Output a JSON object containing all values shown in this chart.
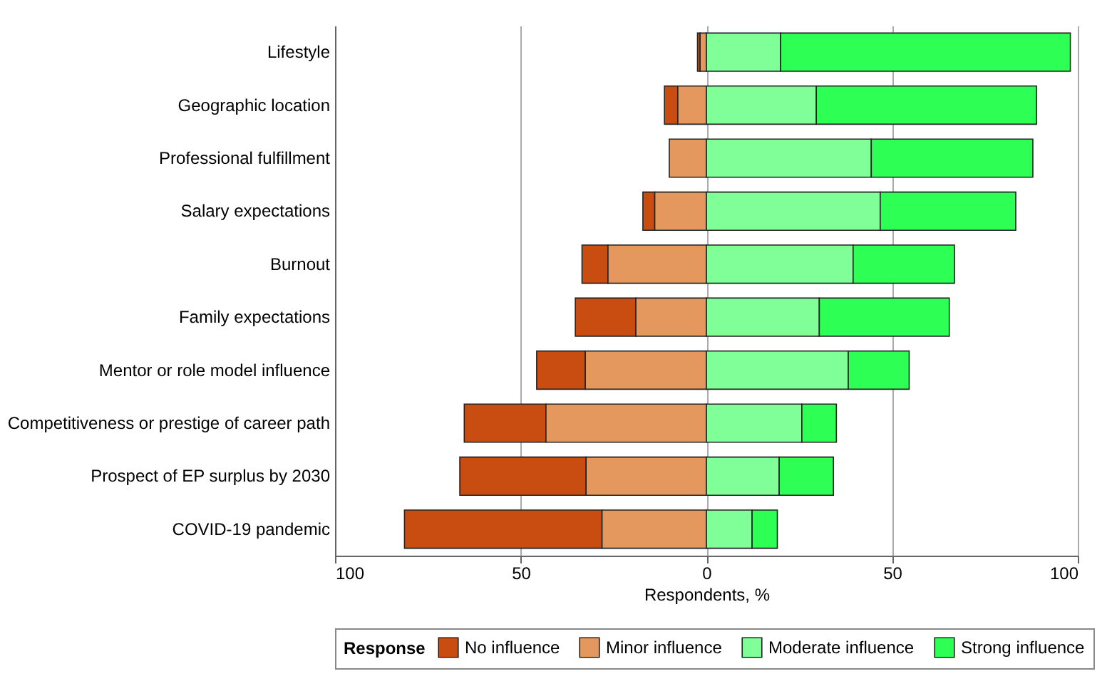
{
  "chart_data": {
    "type": "bar",
    "orientation": "horizontal",
    "xlabel": "Respondents, %",
    "legend_title": "Response",
    "legend": "bottom",
    "grid": "x",
    "categories": [
      "Lifestyle",
      "Geographic location",
      "Professional fulfillment",
      "Salary expectations",
      "Burnout",
      "Family expectations",
      "Mentor or role model influence",
      "Competitiveness or prestige of career path",
      "Prospect of EP surplus by 2030",
      "COVID-19 pandemic"
    ],
    "xlim": [
      -100,
      100
    ],
    "xticks": [
      {
        "value": -100,
        "label": "100"
      },
      {
        "value": -50,
        "label": "50"
      },
      0,
      50,
      100
    ],
    "series": [
      {
        "name": "No influence",
        "color": "#c94c10",
        "base": [
          -1.7,
          -7.7,
          null,
          -13.9,
          -26.5,
          -19,
          -32.6,
          -43.2,
          -32.4,
          -28.1
        ],
        "values": [
          -0.7,
          -3.6,
          null,
          -3.2,
          -7,
          -16.3,
          -13.1,
          -22,
          -34,
          -53.2
        ]
      },
      {
        "name": "Minor influence",
        "color": "#e5985e",
        "base": [
          0,
          0,
          0,
          0,
          0,
          0,
          0,
          0,
          0,
          0
        ],
        "values": [
          -1.7,
          -7.7,
          -10,
          -13.9,
          -26.5,
          -19,
          -32.6,
          -43.2,
          -32.4,
          -28.1
        ]
      },
      {
        "name": "Moderate influence",
        "color": "#80ff99",
        "base": [
          0,
          0,
          0,
          0,
          0,
          0,
          0,
          0,
          0,
          0
        ],
        "values": [
          20,
          29.6,
          44.4,
          46.8,
          39.5,
          30.4,
          38.2,
          25.7,
          19.6,
          12.3
        ]
      },
      {
        "name": "Strong influence",
        "color": "#2eff55",
        "base": [
          20,
          29.6,
          44.4,
          46.8,
          39.5,
          30.4,
          38.2,
          25.7,
          19.6,
          12.3
        ],
        "values": [
          78,
          59.3,
          43.5,
          36.5,
          27.3,
          35,
          16.4,
          9.3,
          14.6,
          6.8
        ]
      }
    ]
  }
}
